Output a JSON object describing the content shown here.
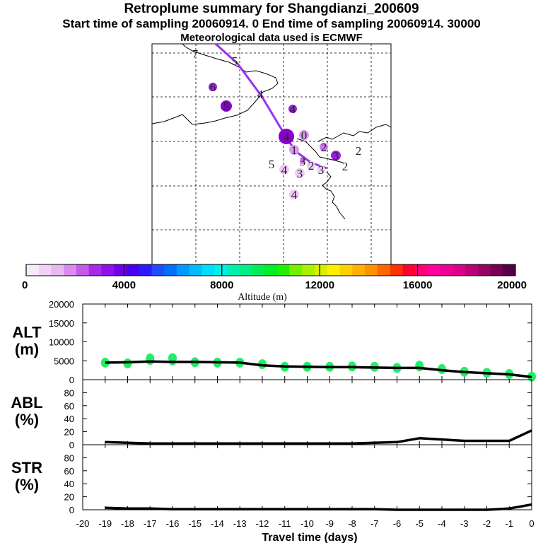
{
  "header": {
    "title": "Retroplume summary for Shangdianzi_200609",
    "sampling": "Start time of sampling 20060914.    0     End time of sampling 20060914. 30000",
    "met": "Meteorological data used is ECMWF"
  },
  "map": {
    "trajectory_color": "#9933ee",
    "markers": [
      {
        "label": "7",
        "color": "#cc99ee",
        "size": 0
      },
      {
        "label": "5",
        "color": "#cc99ee",
        "size": 0
      },
      {
        "label": "6",
        "color": "#9922dd",
        "size": 6
      },
      {
        "label": "5",
        "color": "#8800cc",
        "size": 8
      },
      {
        "label": "4",
        "color": "#9933ee",
        "size": 0
      },
      {
        "label": "4",
        "color": "#9922dd",
        "size": 6
      },
      {
        "label": "4",
        "color": "#8800cc",
        "size": 11
      },
      {
        "label": "0",
        "color": "#dd99ee",
        "size": 7
      },
      {
        "label": "1",
        "color": "#dd99ee",
        "size": 7
      },
      {
        "label": "2",
        "color": "#cc77ee",
        "size": 6
      },
      {
        "label": "3",
        "color": "#9922dd",
        "size": 7
      },
      {
        "label": "2",
        "color": "#eec9f5",
        "size": 0
      },
      {
        "label": "3",
        "color": "#cc66ee",
        "size": 4
      },
      {
        "label": "5",
        "color": "#eec9f5",
        "size": 0
      },
      {
        "label": "4",
        "color": "#eec9f5",
        "size": 7
      },
      {
        "label": "3",
        "color": "#eec9f5",
        "size": 7
      },
      {
        "label": "4",
        "color": "#eec9f5",
        "size": 7
      },
      {
        "label": "2",
        "color": "#eec9f5",
        "size": 6
      },
      {
        "label": "3",
        "color": "#f0d4f8",
        "size": 6
      },
      {
        "label": "2",
        "color": "#cc99ee",
        "size": 0
      }
    ]
  },
  "colorbar": {
    "colors": [
      "#f8e8fb",
      "#f1d2f7",
      "#e9b8f3",
      "#d98cee",
      "#c45be8",
      "#a82ae6",
      "#8f10e8",
      "#7000e8",
      "#4a00ee",
      "#2a1cff",
      "#1f4cff",
      "#0070ff",
      "#0099ff",
      "#00bbff",
      "#00ddff",
      "#00f0e6",
      "#00f0b0",
      "#00ee88",
      "#00ee55",
      "#00ee22",
      "#22f000",
      "#77f000",
      "#aaf000",
      "#dded00",
      "#ffee00",
      "#ffd000",
      "#ffb000",
      "#ff9000",
      "#ff6600",
      "#ff3300",
      "#ff0033",
      "#ff0077",
      "#ff0099",
      "#ee0099",
      "#dd0088",
      "#bb0077",
      "#990066",
      "#770055",
      "#550044"
    ],
    "tick_labels": [
      "0",
      "4000",
      "8000",
      "12000",
      "16000",
      "20000"
    ],
    "label": "Altitude (m)"
  },
  "chart_data": [
    {
      "type": "line",
      "ylabel": "ALT\n(m)",
      "ylabel_lines": [
        "ALT",
        "(m)"
      ],
      "x": [
        -19,
        -18,
        -17,
        -16,
        -15,
        -14,
        -13,
        -12,
        -11,
        -10,
        -9,
        -8,
        -7,
        -6,
        -5,
        -4,
        -3,
        -2,
        -1,
        0
      ],
      "series": [
        {
          "name": "Altitude",
          "values": [
            4500,
            4600,
            4800,
            4700,
            4700,
            4600,
            4500,
            3800,
            3500,
            3400,
            3300,
            3300,
            3200,
            3100,
            3100,
            2500,
            2000,
            1700,
            1400,
            700
          ]
        }
      ],
      "spread": [
        {
          "x": -19,
          "v": 4500
        },
        {
          "x": -18,
          "v": 4300
        },
        {
          "x": -17,
          "v": 5600
        },
        {
          "x": -16,
          "v": 5700
        },
        {
          "x": -15,
          "v": 4600
        },
        {
          "x": -14,
          "v": 4500
        },
        {
          "x": -13,
          "v": 4500
        },
        {
          "x": -12,
          "v": 4100
        },
        {
          "x": -11,
          "v": 3400
        },
        {
          "x": -10,
          "v": 3400
        },
        {
          "x": -9,
          "v": 3400
        },
        {
          "x": -8,
          "v": 3500
        },
        {
          "x": -7,
          "v": 3400
        },
        {
          "x": -6,
          "v": 3100
        },
        {
          "x": -5,
          "v": 3700
        },
        {
          "x": -4,
          "v": 2800
        },
        {
          "x": -3,
          "v": 2100
        },
        {
          "x": -2,
          "v": 1800
        },
        {
          "x": -1,
          "v": 1500
        },
        {
          "x": 0,
          "v": 800
        }
      ],
      "ylim": [
        0,
        20000
      ],
      "yticks": [
        "0",
        "5000",
        "10000",
        "15000",
        "20000"
      ],
      "marker_color": "#22ee66"
    },
    {
      "type": "line",
      "ylabel": "ABL\n(%)",
      "ylabel_lines": [
        "ABL",
        "(%)"
      ],
      "x": [
        -19,
        -18,
        -17,
        -16,
        -15,
        -14,
        -13,
        -12,
        -11,
        -10,
        -9,
        -8,
        -7,
        -6,
        -5,
        -4,
        -3,
        -2,
        -1,
        0
      ],
      "series": [
        {
          "name": "ABL",
          "values": [
            4,
            3,
            2,
            2,
            2,
            2,
            2,
            2,
            2,
            2,
            2,
            2,
            3,
            4,
            10,
            8,
            6,
            6,
            6,
            22
          ]
        }
      ],
      "ylim": [
        0,
        100
      ],
      "yticks": [
        "0",
        "20",
        "40",
        "60",
        "80"
      ]
    },
    {
      "type": "line",
      "ylabel": "STR\n(%)",
      "ylabel_lines": [
        "STR",
        "(%)"
      ],
      "x": [
        -19,
        -18,
        -17,
        -16,
        -15,
        -14,
        -13,
        -12,
        -11,
        -10,
        -9,
        -8,
        -7,
        -6,
        -5,
        -4,
        -3,
        -2,
        -1,
        0
      ],
      "series": [
        {
          "name": "STR",
          "values": [
            3,
            2,
            2,
            1,
            1,
            1,
            1,
            1,
            1,
            1,
            1,
            1,
            1,
            0,
            0,
            0,
            0,
            0,
            2,
            8
          ]
        }
      ],
      "ylim": [
        0,
        100
      ],
      "yticks": [
        "0",
        "20",
        "40",
        "60",
        "80"
      ]
    }
  ],
  "xaxis": {
    "label": "Travel time (days)",
    "ticks": [
      "-20",
      "-19",
      "-18",
      "-17",
      "-16",
      "-15",
      "-14",
      "-13",
      "-12",
      "-11",
      "-10",
      "-9",
      "-8",
      "-7",
      "-6",
      "-5",
      "-4",
      "-3",
      "-2",
      "-1",
      "0"
    ]
  }
}
